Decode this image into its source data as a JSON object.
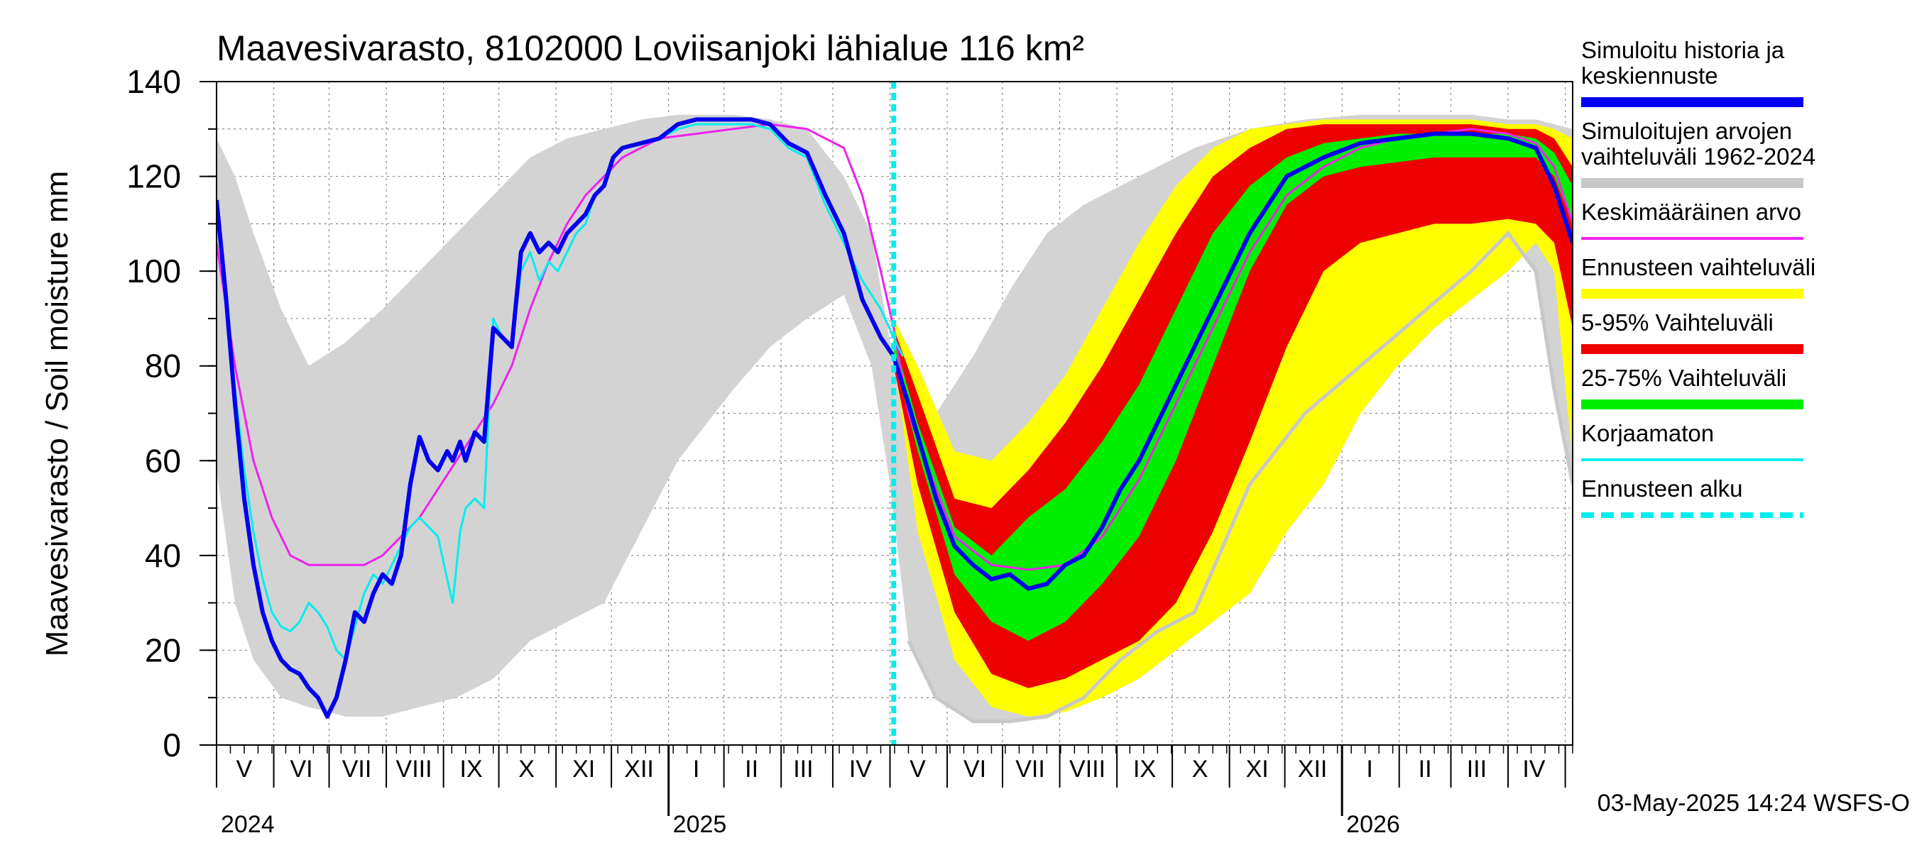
{
  "chart_data": {
    "type": "area",
    "title": "Maavesivarasto, 8102000 Loviisanjoki lähialue 116 km²",
    "ylabel": "Maavesivarasto / Soil moisture   mm",
    "ylim": [
      0,
      140
    ],
    "yticks": [
      0,
      20,
      40,
      60,
      80,
      100,
      120,
      140
    ],
    "x_range_days": [
      0,
      735
    ],
    "month_labels": [
      {
        "label": "V",
        "day": 15
      },
      {
        "label": "VI",
        "day": 46
      },
      {
        "label": "VII",
        "day": 76
      },
      {
        "label": "VIII",
        "day": 107
      },
      {
        "label": "IX",
        "day": 138
      },
      {
        "label": "X",
        "day": 168
      },
      {
        "label": "XI",
        "day": 199
      },
      {
        "label": "XII",
        "day": 229
      },
      {
        "label": "I",
        "day": 260
      },
      {
        "label": "II",
        "day": 290
      },
      {
        "label": "III",
        "day": 318
      },
      {
        "label": "IV",
        "day": 349
      },
      {
        "label": "V",
        "day": 380
      },
      {
        "label": "VI",
        "day": 411
      },
      {
        "label": "VII",
        "day": 441
      },
      {
        "label": "VIII",
        "day": 472
      },
      {
        "label": "IX",
        "day": 503
      },
      {
        "label": "X",
        "day": 533
      },
      {
        "label": "XI",
        "day": 564
      },
      {
        "label": "XII",
        "day": 594
      },
      {
        "label": "I",
        "day": 625
      },
      {
        "label": "II",
        "day": 655
      },
      {
        "label": "III",
        "day": 683
      },
      {
        "label": "IV",
        "day": 714
      }
    ],
    "month_boundaries": [
      0,
      31,
      61,
      92,
      123,
      153,
      184,
      214,
      245,
      275,
      306,
      334,
      365,
      396,
      426,
      457,
      488,
      518,
      549,
      579,
      610,
      641,
      669,
      700,
      731
    ],
    "year_boundaries": [
      245,
      610
    ],
    "year_labels": [
      {
        "label": "2024",
        "day": 0
      },
      {
        "label": "2025",
        "day": 245
      },
      {
        "label": "2026",
        "day": 610
      }
    ],
    "forecast_start_day": 367,
    "timestamp": "03-May-2025 14:24 WSFS-O",
    "legend": [
      {
        "label": "Simuloitu historia ja keskiennuste",
        "lines": [
          "Simuloitu historia ja",
          "keskiennuste"
        ],
        "color": "#0000ee",
        "style": "solid"
      },
      {
        "label": "Simuloitujen arvojen vaihteluväli 1962-2024",
        "lines": [
          "Simuloitujen arvojen",
          "vaihteluväli 1962-2024"
        ],
        "color": "#c8c8c8",
        "style": "solid"
      },
      {
        "label": "Keskimääräinen arvo",
        "lines": [
          "Keskimääräinen arvo"
        ],
        "color": "#ee22ee",
        "style": "thin"
      },
      {
        "label": "Ennusteen vaihteluväli",
        "lines": [
          "Ennusteen vaihteluväli"
        ],
        "color": "#ffff00",
        "style": "solid"
      },
      {
        "label": "5-95% Vaihteluväli",
        "lines": [
          "5-95% Vaihteluväli"
        ],
        "color": "#ee0000",
        "style": "solid"
      },
      {
        "label": "25-75% Vaihteluväli",
        "lines": [
          "25-75% Vaihteluväli"
        ],
        "color": "#00ee00",
        "style": "solid"
      },
      {
        "label": "Korjaamaton",
        "lines": [
          "Korjaamaton"
        ],
        "color": "#00eeee",
        "style": "thin"
      },
      {
        "label": "Ennusteen alku",
        "lines": [
          "Ennusteen alku"
        ],
        "color": "#00eeee",
        "style": "dashed"
      }
    ],
    "series": [
      {
        "name": "Simuloitujen arvojen vaihteluväli 1962-2024",
        "kind": "band",
        "color": "#d3d3d3",
        "x": [
          0,
          10,
          20,
          35,
          50,
          70,
          90,
          110,
          130,
          150,
          170,
          190,
          210,
          230,
          250,
          280,
          300,
          320,
          340,
          355,
          365,
          375,
          390,
          410,
          430,
          450,
          470,
          490,
          510,
          530,
          560,
          590,
          620,
          650,
          680,
          700,
          715,
          725,
          735
        ],
        "low": [
          58,
          30,
          18,
          10,
          8,
          6,
          6,
          8,
          10,
          14,
          22,
          26,
          30,
          45,
          60,
          75,
          84,
          90,
          95,
          80,
          55,
          22,
          10,
          5,
          5,
          6,
          10,
          18,
          24,
          28,
          55,
          70,
          80,
          90,
          100,
          108,
          100,
          75,
          55
        ],
        "high": [
          128,
          120,
          108,
          92,
          80,
          85,
          92,
          100,
          108,
          116,
          124,
          128,
          130,
          132,
          133,
          133,
          132,
          130,
          120,
          108,
          85,
          62,
          70,
          82,
          96,
          108,
          114,
          118,
          122,
          126,
          130,
          132,
          133,
          133,
          133,
          132,
          132,
          131,
          130
        ]
      },
      {
        "name": "Ennusteen vaihteluväli",
        "kind": "band",
        "color": "#ffff00",
        "x": [
          367,
          380,
          400,
          420,
          440,
          460,
          480,
          500,
          520,
          540,
          560,
          580,
          600,
          620,
          640,
          660,
          680,
          700,
          715,
          725,
          735
        ],
        "low": [
          82,
          45,
          18,
          8,
          6,
          7,
          10,
          14,
          20,
          26,
          32,
          45,
          55,
          70,
          80,
          88,
          94,
          100,
          106,
          100,
          60
        ],
        "high": [
          90,
          80,
          62,
          60,
          68,
          78,
          92,
          106,
          118,
          126,
          130,
          131,
          132,
          132,
          132,
          132,
          132,
          131,
          131,
          130,
          128
        ]
      },
      {
        "name": "5-95% Vaihteluväli",
        "kind": "band",
        "color": "#ee0000",
        "x": [
          367,
          380,
          400,
          420,
          440,
          460,
          480,
          500,
          520,
          540,
          560,
          580,
          600,
          620,
          640,
          660,
          680,
          700,
          715,
          725,
          735
        ],
        "low": [
          80,
          55,
          28,
          15,
          12,
          14,
          18,
          22,
          30,
          45,
          64,
          84,
          100,
          106,
          108,
          110,
          110,
          111,
          110,
          106,
          88
        ],
        "high": [
          88,
          74,
          52,
          50,
          58,
          68,
          80,
          94,
          108,
          120,
          126,
          130,
          131,
          131,
          131,
          131,
          131,
          130,
          130,
          128,
          122
        ]
      },
      {
        "name": "25-75% Vaihteluväli",
        "kind": "band",
        "color": "#00ee00",
        "x": [
          367,
          380,
          400,
          420,
          440,
          460,
          480,
          500,
          520,
          540,
          560,
          580,
          600,
          620,
          640,
          660,
          680,
          700,
          715,
          725,
          735
        ],
        "low": [
          82,
          62,
          36,
          26,
          22,
          26,
          34,
          44,
          60,
          80,
          100,
          114,
          120,
          122,
          123,
          124,
          124,
          124,
          124,
          120,
          110
        ],
        "high": [
          86,
          68,
          46,
          40,
          48,
          54,
          64,
          76,
          92,
          108,
          118,
          124,
          127,
          128,
          129,
          129,
          129,
          129,
          128,
          125,
          118
        ]
      },
      {
        "name": "Keskimääräinen arvo",
        "kind": "line",
        "color": "#ee22ee",
        "width": 3,
        "x": [
          0,
          10,
          20,
          30,
          40,
          50,
          60,
          70,
          80,
          90,
          100,
          110,
          120,
          130,
          140,
          150,
          160,
          170,
          180,
          190,
          200,
          210,
          220,
          230,
          240,
          260,
          280,
          300,
          320,
          340,
          350,
          360,
          367,
          375,
          390,
          400,
          420,
          440,
          460,
          480,
          500,
          520,
          540,
          560,
          580,
          600,
          620,
          640,
          660,
          680,
          700,
          715,
          725,
          735
        ],
        "y": [
          106,
          80,
          60,
          48,
          40,
          38,
          38,
          38,
          38,
          40,
          44,
          48,
          54,
          60,
          66,
          72,
          80,
          92,
          102,
          110,
          116,
          120,
          124,
          126,
          128,
          129,
          130,
          131,
          130,
          126,
          116,
          100,
          88,
          70,
          54,
          44,
          38,
          37,
          38,
          44,
          56,
          72,
          88,
          104,
          116,
          122,
          126,
          128,
          129,
          130,
          129,
          127,
          122,
          110
        ]
      },
      {
        "name": "Korjaamaton",
        "kind": "line",
        "color": "#00eeee",
        "width": 3,
        "x": [
          0,
          5,
          10,
          15,
          20,
          25,
          30,
          35,
          40,
          45,
          50,
          55,
          60,
          65,
          70,
          75,
          80,
          85,
          90,
          95,
          100,
          105,
          110,
          115,
          120,
          125,
          128,
          132,
          135,
          140,
          145,
          150,
          155,
          160,
          165,
          170,
          175,
          180,
          185,
          190,
          195,
          200,
          205,
          210,
          215,
          220,
          230,
          240,
          250,
          260,
          270,
          280,
          290,
          300,
          310,
          320,
          330,
          340,
          350,
          360,
          367,
          372
        ],
        "y": [
          115,
          95,
          75,
          58,
          45,
          35,
          28,
          25,
          24,
          26,
          30,
          28,
          25,
          20,
          18,
          25,
          32,
          36,
          34,
          38,
          42,
          46,
          48,
          46,
          44,
          35,
          30,
          45,
          50,
          52,
          50,
          90,
          86,
          84,
          100,
          104,
          98,
          102,
          100,
          104,
          108,
          110,
          116,
          118,
          124,
          126,
          127,
          128,
          130,
          131,
          131,
          131,
          131,
          130,
          126,
          124,
          114,
          106,
          98,
          92,
          86,
          82
        ]
      },
      {
        "name": "Simuloitu historia ja keskiennuste",
        "kind": "line",
        "color": "#0000ee",
        "width": 6,
        "x": [
          0,
          5,
          10,
          15,
          20,
          25,
          30,
          35,
          40,
          45,
          50,
          55,
          60,
          65,
          70,
          75,
          80,
          85,
          90,
          95,
          100,
          105,
          110,
          115,
          120,
          125,
          128,
          132,
          135,
          140,
          145,
          150,
          155,
          160,
          165,
          170,
          175,
          180,
          185,
          190,
          195,
          200,
          205,
          210,
          215,
          220,
          230,
          240,
          250,
          260,
          270,
          280,
          290,
          300,
          310,
          320,
          330,
          340,
          350,
          360,
          367,
          375,
          390,
          400,
          410,
          420,
          430,
          440,
          450,
          460,
          470,
          480,
          490,
          500,
          510,
          520,
          530,
          540,
          550,
          560,
          570,
          580,
          600,
          620,
          640,
          660,
          680,
          700,
          715,
          725,
          735
        ],
        "y": [
          115,
          95,
          72,
          52,
          38,
          28,
          22,
          18,
          16,
          15,
          12,
          10,
          6,
          10,
          18,
          28,
          26,
          32,
          36,
          34,
          40,
          55,
          65,
          60,
          58,
          62,
          60,
          64,
          60,
          66,
          64,
          88,
          86,
          84,
          104,
          108,
          104,
          106,
          104,
          108,
          110,
          112,
          116,
          118,
          124,
          126,
          127,
          128,
          131,
          132,
          132,
          132,
          132,
          131,
          127,
          125,
          116,
          108,
          94,
          86,
          82,
          72,
          52,
          42,
          38,
          35,
          36,
          33,
          34,
          38,
          40,
          46,
          54,
          60,
          68,
          76,
          84,
          92,
          100,
          108,
          114,
          120,
          124,
          127,
          128,
          129,
          129,
          128,
          126,
          118,
          106
        ]
      }
    ]
  }
}
